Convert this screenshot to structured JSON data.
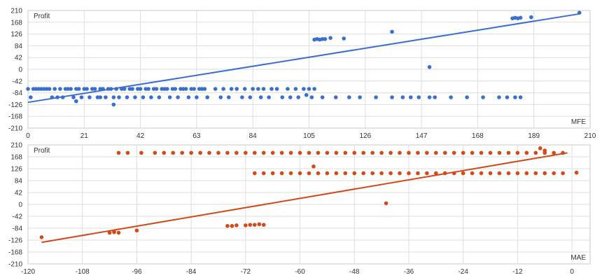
{
  "chart_data": [
    {
      "type": "scatter",
      "ylabel": "Profit",
      "xlabel": "MFE",
      "xlim": [
        0,
        210
      ],
      "ylim": [
        -210,
        210
      ],
      "x_ticks": [
        "0",
        "21",
        "42",
        "63",
        "84",
        "105",
        "126",
        "147",
        "168",
        "189",
        "210"
      ],
      "y_ticks": [
        "210",
        "168",
        "126",
        "84",
        "42",
        "0",
        "-42",
        "-84",
        "-126",
        "-168",
        "-210"
      ],
      "grid": true,
      "color": "#3a6fcf",
      "trendline": {
        "x": [
          0,
          206
        ],
        "y": [
          -118,
          198
        ]
      },
      "points": [
        [
          0,
          -70
        ],
        [
          1,
          -100
        ],
        [
          2,
          -70
        ],
        [
          3,
          -70
        ],
        [
          4,
          -70
        ],
        [
          5,
          -70
        ],
        [
          6,
          -70
        ],
        [
          7,
          -70
        ],
        [
          8,
          -70
        ],
        [
          9,
          -100
        ],
        [
          10,
          -70
        ],
        [
          11,
          -100
        ],
        [
          12,
          -70
        ],
        [
          13,
          -100
        ],
        [
          14,
          -70
        ],
        [
          15,
          -70
        ],
        [
          16,
          -70
        ],
        [
          17,
          -100
        ],
        [
          18,
          -70
        ],
        [
          19,
          -70
        ],
        [
          20,
          -100
        ],
        [
          21,
          -70
        ],
        [
          22,
          -70
        ],
        [
          23,
          -100
        ],
        [
          24,
          -70
        ],
        [
          25,
          -70
        ],
        [
          26,
          -100
        ],
        [
          27,
          -70
        ],
        [
          28,
          -70
        ],
        [
          29,
          -100
        ],
        [
          30,
          -70
        ],
        [
          31,
          -70
        ],
        [
          32,
          -100
        ],
        [
          33,
          -70
        ],
        [
          34,
          -100
        ],
        [
          35,
          -70
        ],
        [
          36,
          -70
        ],
        [
          37,
          -100
        ],
        [
          38,
          -70
        ],
        [
          39,
          -70
        ],
        [
          40,
          -100
        ],
        [
          41,
          -70
        ],
        [
          42,
          -70
        ],
        [
          43,
          -100
        ],
        [
          44,
          -70
        ],
        [
          45,
          -70
        ],
        [
          46,
          -100
        ],
        [
          47,
          -70
        ],
        [
          48,
          -70
        ],
        [
          49,
          -100
        ],
        [
          50,
          -70
        ],
        [
          51,
          -70
        ],
        [
          52,
          -70
        ],
        [
          53,
          -100
        ],
        [
          54,
          -70
        ],
        [
          55,
          -70
        ],
        [
          56,
          -100
        ],
        [
          57,
          -70
        ],
        [
          58,
          -70
        ],
        [
          59,
          -70
        ],
        [
          60,
          -100
        ],
        [
          61,
          -70
        ],
        [
          62,
          -70
        ],
        [
          63,
          -100
        ],
        [
          64,
          -70
        ],
        [
          65,
          -70
        ],
        [
          66,
          -70
        ],
        [
          67,
          -100
        ],
        [
          70,
          -70
        ],
        [
          72,
          -100
        ],
        [
          73,
          -70
        ],
        [
          75,
          -100
        ],
        [
          76,
          -70
        ],
        [
          78,
          -70
        ],
        [
          80,
          -100
        ],
        [
          81,
          -70
        ],
        [
          83,
          -100
        ],
        [
          84,
          -70
        ],
        [
          86,
          -70
        ],
        [
          87,
          -100
        ],
        [
          88,
          -70
        ],
        [
          90,
          -100
        ],
        [
          91,
          -70
        ],
        [
          93,
          -70
        ],
        [
          95,
          -100
        ],
        [
          97,
          -70
        ],
        [
          98,
          -100
        ],
        [
          100,
          -70
        ],
        [
          101,
          -100
        ],
        [
          103,
          -70
        ],
        [
          104,
          -92
        ],
        [
          105,
          -70
        ],
        [
          106,
          -100
        ],
        [
          107,
          -70
        ],
        [
          18,
          -114
        ],
        [
          27,
          -100
        ],
        [
          32,
          -126
        ],
        [
          107,
          106
        ],
        [
          108,
          108
        ],
        [
          109,
          106
        ],
        [
          110,
          108
        ],
        [
          111,
          108
        ],
        [
          113,
          112
        ],
        [
          118,
          110
        ],
        [
          136,
          134
        ],
        [
          150,
          8
        ],
        [
          181,
          182
        ],
        [
          182,
          184
        ],
        [
          183,
          182
        ],
        [
          184,
          184
        ],
        [
          188,
          186
        ],
        [
          206,
          202
        ],
        [
          110,
          -100
        ],
        [
          115,
          -100
        ],
        [
          120,
          -100
        ],
        [
          124,
          -100
        ],
        [
          130,
          -100
        ],
        [
          136,
          -100
        ],
        [
          140,
          -100
        ],
        [
          143,
          -100
        ],
        [
          146,
          -100
        ],
        [
          150,
          -100
        ],
        [
          152,
          -100
        ],
        [
          158,
          -100
        ],
        [
          164,
          -100
        ],
        [
          170,
          -100
        ],
        [
          176,
          -100
        ],
        [
          179,
          -100
        ],
        [
          182,
          -100
        ],
        [
          184,
          -100
        ]
      ]
    },
    {
      "type": "scatter",
      "ylabel": "Profit",
      "xlabel": "MAE",
      "xlim": [
        -120,
        4
      ],
      "ylim": [
        -210,
        210
      ],
      "x_ticks": [
        "-120",
        "-108",
        "-96",
        "-84",
        "-72",
        "-60",
        "-48",
        "-36",
        "-24",
        "-12",
        "0"
      ],
      "y_ticks": [
        "210",
        "168",
        "126",
        "84",
        "42",
        "0",
        "-42",
        "-84",
        "-126",
        "-168",
        "-210"
      ],
      "grid": true,
      "color": "#d24a1a",
      "trendline": {
        "x": [
          -117,
          -1
        ],
        "y": [
          -134,
          182
        ]
      },
      "points": [
        [
          -117,
          -116
        ],
        [
          -102,
          -100
        ],
        [
          -101,
          -98
        ],
        [
          -100,
          -100
        ],
        [
          -101,
          -96
        ],
        [
          -96,
          -92
        ],
        [
          -100,
          182
        ],
        [
          -98,
          182
        ],
        [
          -95,
          182
        ],
        [
          -92,
          182
        ],
        [
          -90,
          182
        ],
        [
          -88,
          182
        ],
        [
          -86,
          182
        ],
        [
          -84,
          182
        ],
        [
          -82,
          182
        ],
        [
          -80,
          182
        ],
        [
          -78,
          182
        ],
        [
          -76,
          182
        ],
        [
          -74,
          182
        ],
        [
          -72,
          182
        ],
        [
          -70,
          182
        ],
        [
          -68,
          182
        ],
        [
          -66,
          182
        ],
        [
          -64,
          182
        ],
        [
          -62,
          182
        ],
        [
          -60,
          182
        ],
        [
          -58,
          182
        ],
        [
          -56,
          182
        ],
        [
          -54,
          182
        ],
        [
          -52,
          182
        ],
        [
          -50,
          182
        ],
        [
          -48,
          182
        ],
        [
          -46,
          182
        ],
        [
          -44,
          182
        ],
        [
          -42,
          182
        ],
        [
          -40,
          182
        ],
        [
          -38,
          182
        ],
        [
          -36,
          182
        ],
        [
          -34,
          182
        ],
        [
          -32,
          182
        ],
        [
          -30,
          182
        ],
        [
          -28,
          182
        ],
        [
          -26,
          182
        ],
        [
          -24,
          182
        ],
        [
          -22,
          182
        ],
        [
          -20,
          182
        ],
        [
          -18,
          182
        ],
        [
          -16,
          182
        ],
        [
          -14,
          182
        ],
        [
          -12,
          182
        ],
        [
          -10,
          182
        ],
        [
          -8,
          182
        ],
        [
          -6,
          182
        ],
        [
          -4,
          182
        ],
        [
          -2,
          182
        ],
        [
          -7,
          198
        ],
        [
          -6,
          190
        ],
        [
          -70,
          110
        ],
        [
          -68,
          110
        ],
        [
          -66,
          110
        ],
        [
          -64,
          110
        ],
        [
          -62,
          110
        ],
        [
          -60,
          110
        ],
        [
          -58,
          110
        ],
        [
          -57,
          134
        ],
        [
          -56,
          110
        ],
        [
          -54,
          110
        ],
        [
          -52,
          110
        ],
        [
          -50,
          110
        ],
        [
          -48,
          110
        ],
        [
          -46,
          110
        ],
        [
          -44,
          110
        ],
        [
          -42,
          110
        ],
        [
          -40,
          110
        ],
        [
          -38,
          110
        ],
        [
          -36,
          110
        ],
        [
          -34,
          110
        ],
        [
          -32,
          110
        ],
        [
          -30,
          110
        ],
        [
          -28,
          110
        ],
        [
          -26,
          110
        ],
        [
          -24,
          110
        ],
        [
          -22,
          110
        ],
        [
          -20,
          110
        ],
        [
          -18,
          110
        ],
        [
          -16,
          110
        ],
        [
          -14,
          110
        ],
        [
          -12,
          110
        ],
        [
          -10,
          110
        ],
        [
          -8,
          110
        ],
        [
          -6,
          110
        ],
        [
          -4,
          110
        ],
        [
          -2,
          110
        ],
        [
          1,
          112
        ],
        [
          -41,
          4
        ],
        [
          -76,
          -76
        ],
        [
          -75,
          -76
        ],
        [
          -74,
          -74
        ],
        [
          -72,
          -74
        ],
        [
          -71,
          -72
        ],
        [
          -70,
          -72
        ],
        [
          -69,
          -70
        ],
        [
          -68,
          -72
        ]
      ]
    }
  ]
}
